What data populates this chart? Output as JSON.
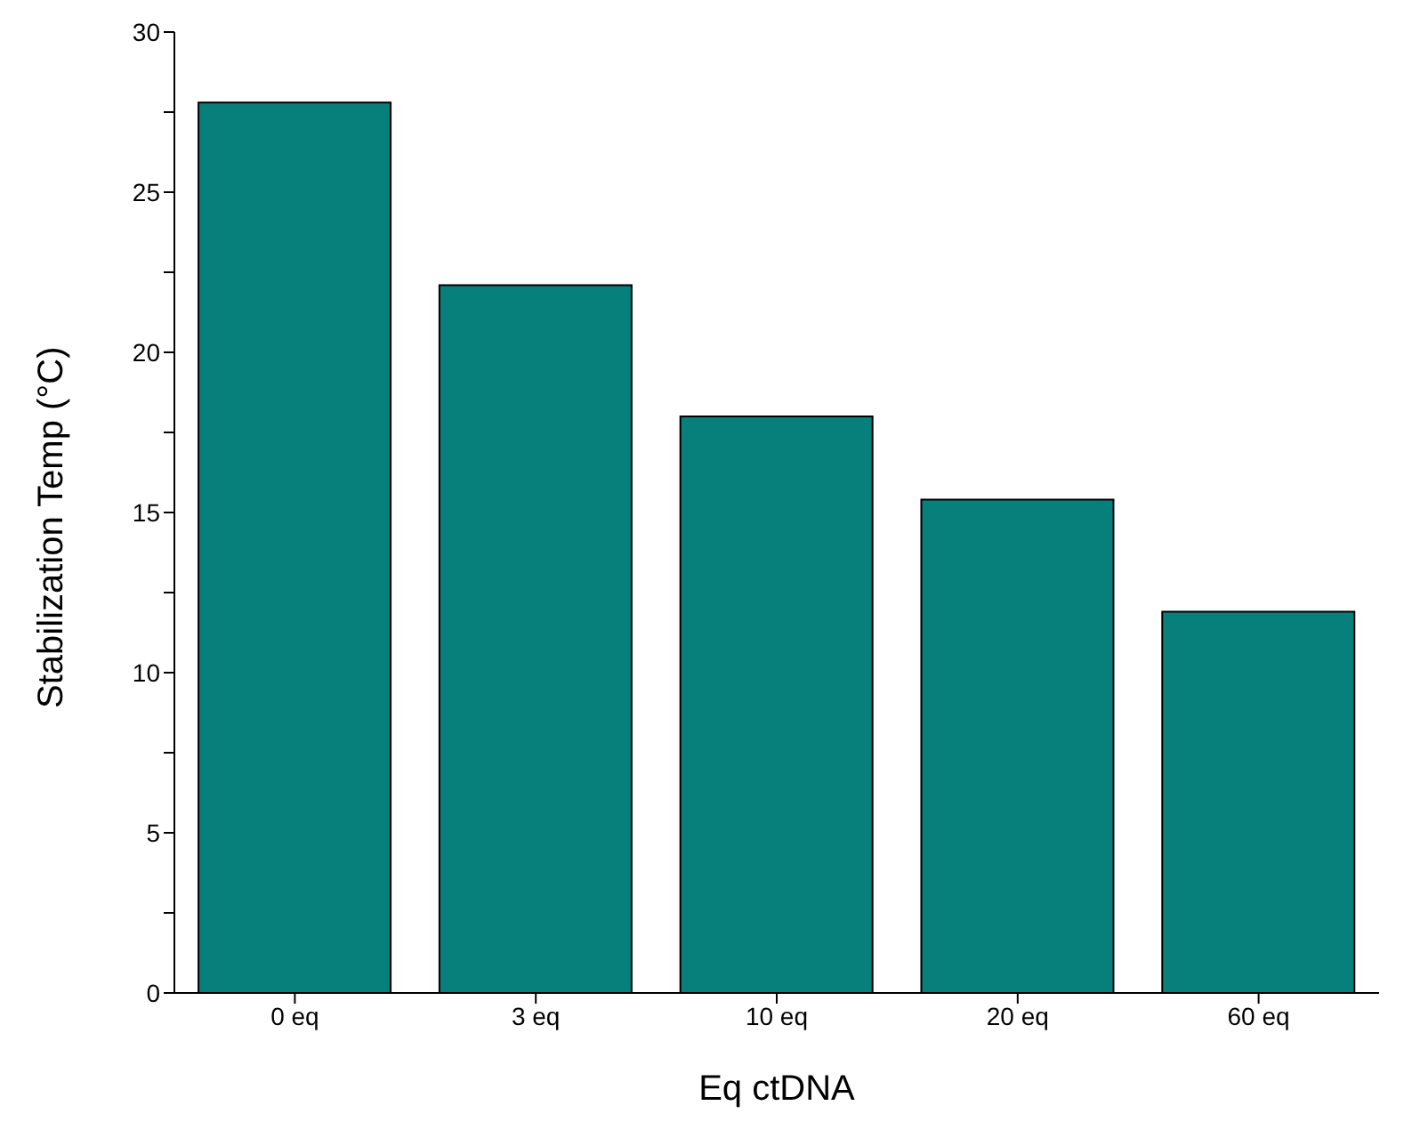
{
  "chart_data": {
    "type": "bar",
    "xlabel": "Eq ctDNA",
    "ylabel": "Stabilization Temp (°C)",
    "categories": [
      "0 eq",
      "3 eq",
      "10 eq",
      "20 eq",
      "60 eq"
    ],
    "values": [
      27.8,
      22.1,
      18.0,
      15.4,
      11.9
    ],
    "color": "#077f7b",
    "ylim": [
      0,
      30
    ],
    "yticks": [
      0,
      {
        "value": 2.5,
        "label": null
      },
      5,
      {
        "value": 7.5,
        "label": null
      },
      10,
      {
        "value": 12.5,
        "label": null
      },
      15,
      {
        "value": 17.5,
        "label": null
      },
      20,
      {
        "value": 22.5,
        "label": null
      },
      25,
      {
        "value": 27.5,
        "label": null
      },
      30
    ],
    "grid": false,
    "legend": false
  }
}
